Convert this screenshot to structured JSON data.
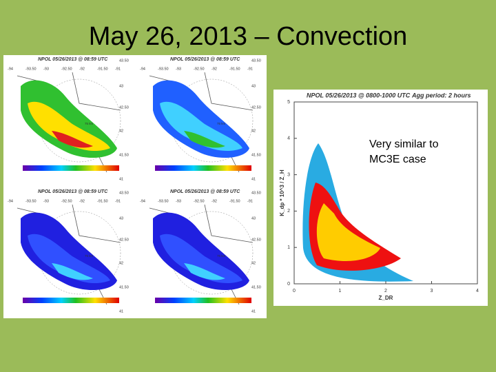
{
  "title": "May 26, 2013 – Convection",
  "panels": [
    {
      "title": "NPOL 05/26/2013 @ 08:59 UTC"
    },
    {
      "title": "NPOL 05/26/2013 @ 08:59 UTC"
    },
    {
      "title": "NPOL 05/26/2013 @ 08:59 UTC"
    },
    {
      "title": "NPOL 05/26/2013 @ 08:59 UTC"
    }
  ],
  "lon_labels": [
    "-94",
    "-93.50",
    "-93",
    "-92.50",
    "-92",
    "-91.50",
    "-91"
  ],
  "lat_labels": [
    "43.50",
    "43",
    "42.50",
    "42",
    "41.50",
    "41"
  ],
  "range_label": "75 km",
  "scatter_plot": {
    "title": "NPOL 05/26/2013 @ 0800-1000 UTC",
    "subtitle": "Agg period: 2 hours",
    "x_label": "Z_DR",
    "y_label": "K_dp * 10^3 / Z_H",
    "xlim": [
      0,
      4
    ],
    "xticks": [
      0,
      1,
      2,
      3,
      4
    ],
    "ylim": [
      0,
      5
    ],
    "yticks": [
      0,
      1,
      2,
      3,
      4,
      5
    ]
  },
  "annotation": [
    "Very similar to",
    "MC3E case"
  ]
}
